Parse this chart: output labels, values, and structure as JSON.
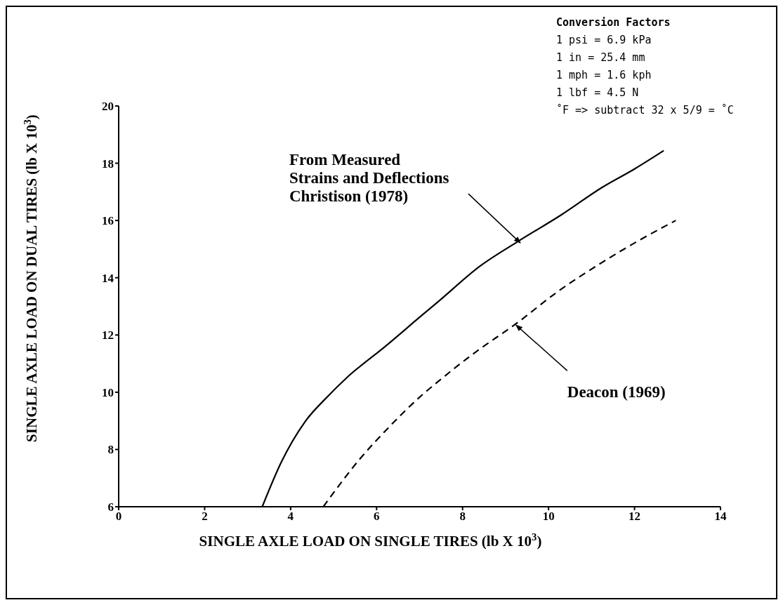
{
  "chart_data": {
    "type": "line",
    "xlabel": "SINGLE AXLE LOAD ON SINGLE TIRES (lb X 10$^{3}$)",
    "ylabel": "SINGLE AXLE LOAD ON DUAL TIRES (lb X 10$^{3}$)",
    "xlim": [
      0,
      14
    ],
    "xticks": [
      0,
      2,
      4,
      6,
      8,
      10,
      12,
      14
    ],
    "ylim": [
      6,
      20
    ],
    "yticks": [
      6,
      8,
      10,
      12,
      14,
      16,
      18,
      20
    ],
    "grid": false,
    "marker": "none",
    "series": [
      {
        "color": "#000000",
        "line_style": "solid",
        "x": [
          3.34,
          3.79,
          4.33,
          4.88,
          5.3,
          6.2,
          7.04,
          7.46,
          8.4,
          9.28,
          10.3,
          11.24,
          12.0,
          12.68
        ],
        "values": [
          6.0,
          7.58,
          8.96,
          9.88,
          10.5,
          11.6,
          12.67,
          13.2,
          14.4,
          15.26,
          16.2,
          17.15,
          17.8,
          18.44
        ]
      },
      {
        "color": "#000000",
        "line_style": "dashed",
        "x": [
          4.76,
          5.6,
          6.3,
          7.04,
          7.46,
          8.3,
          9.25,
          10.2,
          11.24,
          12.1,
          12.96
        ],
        "values": [
          6.0,
          7.65,
          8.8,
          9.88,
          10.41,
          11.4,
          12.4,
          13.5,
          14.53,
          15.3,
          16.0
        ]
      }
    ],
    "annotations": [
      {
        "text": "From Measured\nStrains and Deflections\nChristison (1978)",
        "x": 9.3,
        "y": 15.25
      },
      {
        "text": "Deacon (1969)",
        "x": 9.2,
        "y": 12.4
      },
      "Conversion Factors\n1 psi = 6.9 kPa\n1 in = 25.4 mm\n1 mph = 1.6 kph\n1 lbf = 4.5 N\n˚F => subtract 32 x 5/9 = ˚C"
    ]
  }
}
